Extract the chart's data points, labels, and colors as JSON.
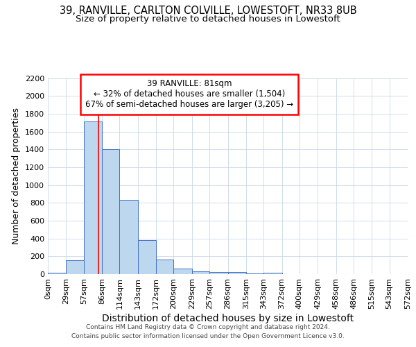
{
  "title1": "39, RANVILLE, CARLTON COLVILLE, LOWESTOFT, NR33 8UB",
  "title2": "Size of property relative to detached houses in Lowestoft",
  "xlabel": "Distribution of detached houses by size in Lowestoft",
  "ylabel": "Number of detached properties",
  "footnote1": "Contains HM Land Registry data © Crown copyright and database right 2024.",
  "footnote2": "Contains public sector information licensed under the Open Government Licence v3.0.",
  "annotation_line1": "39 RANVILLE: 81sqm",
  "annotation_line2": "← 32% of detached houses are smaller (1,504)",
  "annotation_line3": "67% of semi-detached houses are larger (3,205) →",
  "bar_edges": [
    0,
    29,
    57,
    86,
    114,
    143,
    172,
    200,
    229,
    257,
    286,
    315,
    343,
    372,
    400,
    429,
    458,
    486,
    515,
    543,
    572
  ],
  "bar_heights": [
    15,
    155,
    1710,
    1400,
    835,
    385,
    160,
    65,
    35,
    25,
    20,
    10,
    15,
    0,
    0,
    0,
    0,
    0,
    0,
    0
  ],
  "bar_color": "#bdd7ee",
  "bar_edge_color": "#4472c4",
  "vline_x": 81,
  "vline_color": "#ff0000",
  "ylim": [
    0,
    2200
  ],
  "yticks": [
    0,
    200,
    400,
    600,
    800,
    1000,
    1200,
    1400,
    1600,
    1800,
    2000,
    2200
  ],
  "xlim": [
    0,
    572
  ],
  "bg_color": "#ffffff",
  "grid_color": "#c8d8e8",
  "title1_fontsize": 10.5,
  "title2_fontsize": 9.5,
  "xlabel_fontsize": 10,
  "ylabel_fontsize": 9,
  "tick_fontsize": 8,
  "footnote_fontsize": 6.5,
  "annotation_fontsize": 8.5
}
